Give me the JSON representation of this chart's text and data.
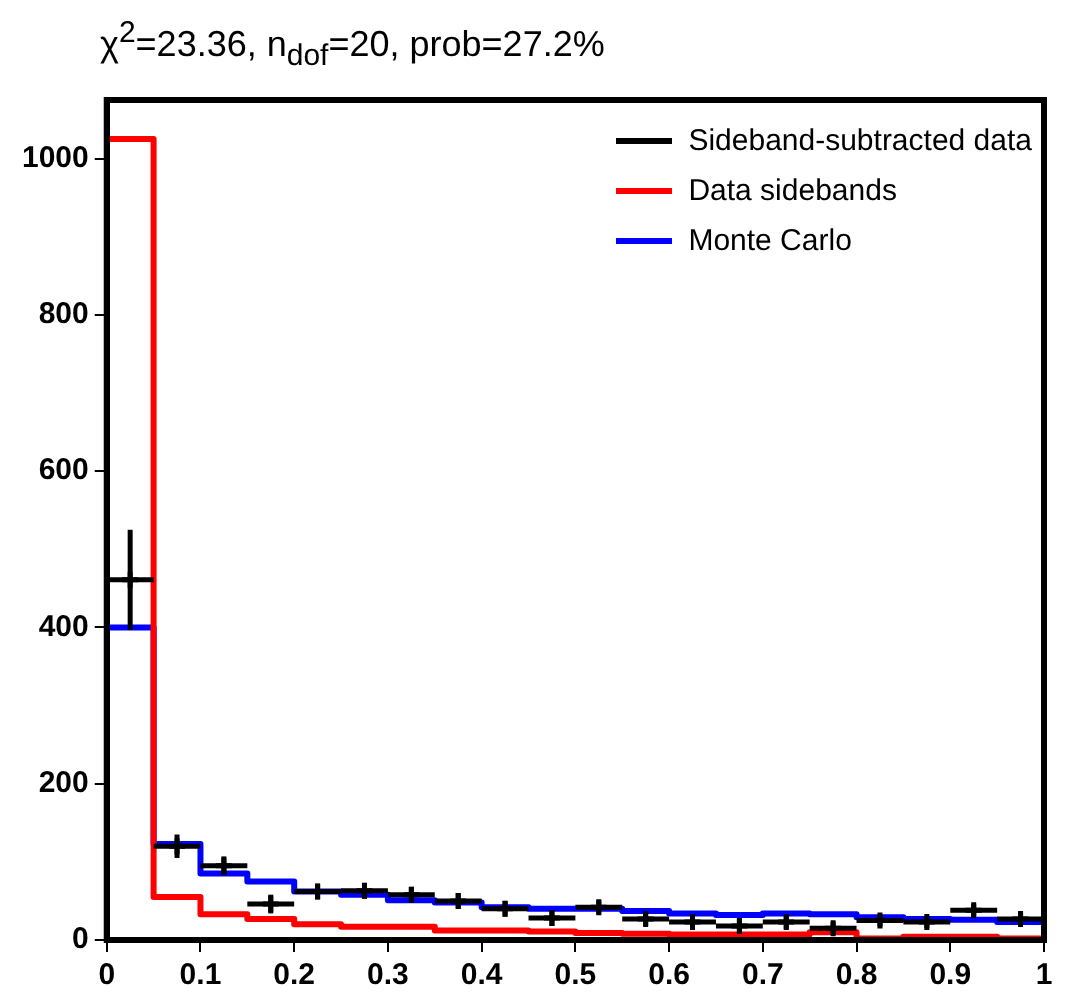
{
  "chart_data": {
    "type": "histogram",
    "title": "χ$^{2}$=23.36, n$_{dof}$=20, prob=27.2%",
    "bins": [
      0,
      0.05,
      0.1,
      0.15,
      0.2,
      0.25,
      0.3,
      0.35,
      0.4,
      0.45,
      0.5,
      0.55,
      0.6,
      0.65,
      0.7,
      0.75,
      0.8,
      0.85,
      0.9,
      0.95,
      1
    ],
    "series": [
      {
        "name": "Sideband-subtracted data",
        "type": "scatter",
        "color": "#000000",
        "marker": "cross",
        "x": [
          0.025,
          0.075,
          0.125,
          0.175,
          0.225,
          0.275,
          0.325,
          0.375,
          0.425,
          0.475,
          0.525,
          0.575,
          0.625,
          0.675,
          0.725,
          0.775,
          0.825,
          0.875,
          0.925,
          0.975
        ],
        "values": [
          461,
          120,
          95,
          46,
          62,
          63,
          58,
          50,
          40,
          28,
          42,
          27,
          23,
          18,
          23,
          15,
          25,
          23,
          38,
          27
        ],
        "errors": [
          64,
          15,
          12,
          12,
          10,
          10,
          10,
          10,
          10,
          10,
          9,
          9,
          9,
          9,
          9,
          8,
          8,
          8,
          8,
          8
        ],
        "xerrors": [
          0.025,
          0.025,
          0.025,
          0.025,
          0.025,
          0.025,
          0.025,
          0.025,
          0.025,
          0.025,
          0.025,
          0.025,
          0.025,
          0.025,
          0.025,
          0.025,
          0.025,
          0.025,
          0.025,
          0.025
        ]
      },
      {
        "name": "Data sidebands",
        "color": "#ff0000",
        "values": [
          1025,
          55,
          33,
          27,
          20,
          17,
          17,
          12,
          12,
          11,
          9,
          8,
          7,
          7,
          7,
          10,
          2,
          4,
          4,
          2
        ]
      },
      {
        "name": "Monte Carlo",
        "color": "#0000ff",
        "values": [
          400,
          123,
          85,
          75,
          62,
          58,
          51,
          48,
          42,
          40,
          40,
          37,
          34,
          32,
          34,
          33,
          29,
          27,
          26,
          23
        ]
      }
    ],
    "xlim": [
      0,
      1
    ],
    "xticks": [
      0,
      0.1,
      0.2,
      0.3,
      0.4,
      0.5,
      0.6,
      0.7,
      0.8,
      0.9,
      1
    ],
    "ylim": [
      0,
      1075
    ],
    "yticks": [
      0,
      200,
      400,
      600,
      800,
      1000
    ],
    "legend": "top right"
  }
}
